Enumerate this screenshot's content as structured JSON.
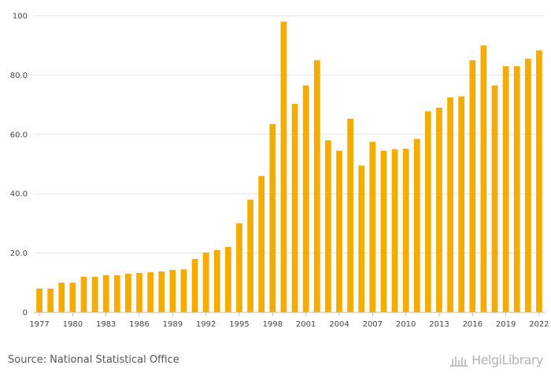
{
  "chart_data": {
    "type": "bar",
    "title": "",
    "xlabel": "",
    "ylabel": "",
    "ylim": [
      0,
      100
    ],
    "yticks": [
      0,
      20,
      40,
      60,
      80,
      100
    ],
    "ytick_labels": [
      "0",
      "20.0",
      "40.0",
      "60.0",
      "80.0",
      "100"
    ],
    "xtick_labels": [
      "1977",
      "1980",
      "1983",
      "1986",
      "1989",
      "1992",
      "1995",
      "1998",
      "2001",
      "2004",
      "2007",
      "2010",
      "2013",
      "2016",
      "2019",
      "2022"
    ],
    "grid": true,
    "bar_color": "#f5ac00",
    "categories": [
      "1977",
      "1978",
      "1979",
      "1980",
      "1981",
      "1982",
      "1983",
      "1984",
      "1985",
      "1986",
      "1987",
      "1988",
      "1989",
      "1990",
      "1991",
      "1992",
      "1993",
      "1994",
      "1995",
      "1996",
      "1997",
      "1998",
      "1999",
      "2000",
      "2001",
      "2002",
      "2003",
      "2004",
      "2005",
      "2006",
      "2007",
      "2008",
      "2009",
      "2010",
      "2011",
      "2012",
      "2013",
      "2014",
      "2015",
      "2016",
      "2017",
      "2018",
      "2019",
      "2020",
      "2021",
      "2022"
    ],
    "values": [
      8,
      8,
      10,
      10,
      12,
      12,
      12.5,
      12.5,
      13,
      13.3,
      13.5,
      13.8,
      14.3,
      14.5,
      18,
      20.2,
      21,
      22,
      30,
      38,
      46,
      63.5,
      98,
      70.3,
      76.5,
      85,
      58,
      54.5,
      65.3,
      49.5,
      57.5,
      54.5,
      55,
      55.2,
      58.5,
      67.8,
      69,
      72.5,
      72.8,
      85,
      90,
      76.5,
      83,
      83,
      85.5,
      88.3
    ]
  },
  "footer": {
    "source": "Source: National Statistical Office",
    "brand": "HelgiLibrary",
    "brand_icon": "library-building-icon"
  }
}
